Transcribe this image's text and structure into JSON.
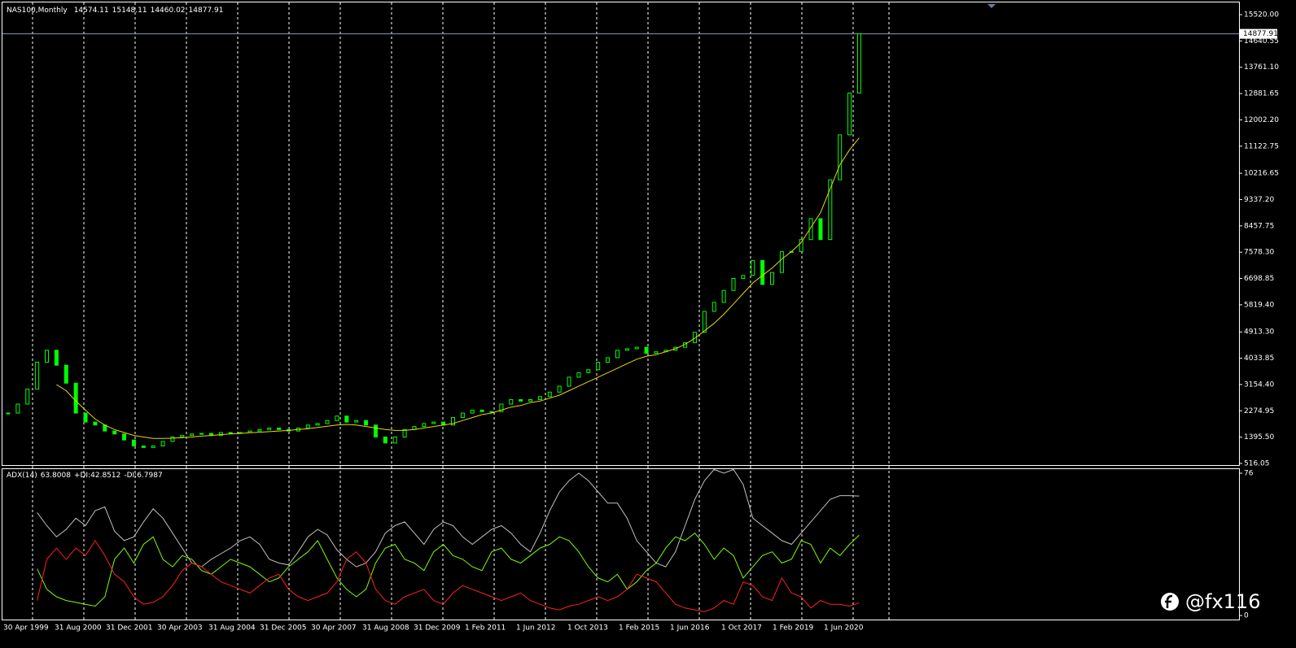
{
  "chart_data": {
    "type": "candlestick",
    "title": "NAS100,Monthly",
    "ohlc": [
      14574.11,
      15148.11,
      14460.02,
      14877.91
    ],
    "color": "#00ff00",
    "closes": [
      2200,
      2500,
      3000,
      3900,
      4300,
      3800,
      3200,
      2200,
      1900,
      1800,
      1600,
      1500,
      1300,
      1100,
      1050,
      1100,
      1250,
      1400,
      1450,
      1500,
      1520,
      1450,
      1550,
      1550,
      1550,
      1600,
      1650,
      1700,
      1650,
      1600,
      1700,
      1800,
      1850,
      1950,
      2100,
      1900,
      1950,
      1800,
      1400,
      1200,
      1400,
      1650,
      1750,
      1850,
      1900,
      1800,
      2050,
      2200,
      2300,
      2250,
      2250,
      2500,
      2650,
      2600,
      2650,
      2750,
      2900,
      3100,
      3400,
      3550,
      3650,
      3900,
      4050,
      4300,
      4350,
      4400,
      4200,
      4250,
      4300,
      4400,
      4550,
      4900,
      5600,
      5900,
      6300,
      6700,
      6800,
      7300,
      6500,
      6900,
      7600,
      7600,
      8000,
      8700,
      8000,
      10000,
      11500,
      12900,
      14877.91
    ],
    "ma": {
      "color": "#e8d800",
      "values": [
        null,
        null,
        null,
        null,
        null,
        3150,
        2950,
        2600,
        2300,
        2000,
        1800,
        1650,
        1550,
        1450,
        1400,
        1350,
        1350,
        1360,
        1380,
        1400,
        1430,
        1450,
        1480,
        1500,
        1520,
        1540,
        1560,
        1580,
        1600,
        1620,
        1650,
        1680,
        1720,
        1760,
        1800,
        1820,
        1800,
        1750,
        1700,
        1650,
        1620,
        1620,
        1650,
        1700,
        1750,
        1800,
        1850,
        1950,
        2050,
        2150,
        2200,
        2300,
        2400,
        2450,
        2550,
        2600,
        2700,
        2800,
        2950,
        3100,
        3250,
        3400,
        3550,
        3700,
        3850,
        4000,
        4100,
        4150,
        4250,
        4350,
        4500,
        4700,
        4950,
        5200,
        5500,
        5850,
        6200,
        6550,
        6800,
        7050,
        7350,
        7600,
        7900,
        8400,
        8900,
        9700,
        10500,
        11000,
        11400
      ]
    },
    "current_price": 14877.91,
    "ylim": [
      516.05,
      15520
    ],
    "yticks": [
      {
        "value": 15520,
        "label": "15520.00"
      },
      14640.55,
      {
        "value": 13761.1,
        "label": "13761.10"
      },
      12881.65,
      {
        "value": 12002.2,
        "label": "12002.20"
      },
      11122.75,
      10216.65,
      {
        "value": 9337.2,
        "label": "9337.20"
      },
      8457.75,
      {
        "value": 7578.3,
        "label": "7578.30"
      },
      6698.85,
      {
        "value": 5819.4,
        "label": "5819.40"
      },
      {
        "value": 4913.3,
        "label": "4913.30"
      },
      4033.85,
      {
        "value": 3154.4,
        "label": "3154.40"
      },
      2274.95,
      {
        "value": 1395.5,
        "label": "1395.50"
      },
      516.05
    ],
    "xlabels": [
      "30 Apr 1999",
      "31 Aug 2000",
      "31 Dec 2001",
      "30 Apr 2003",
      "31 Aug 2004",
      "31 Dec 2005",
      "30 Apr 2007",
      "31 Aug 2008",
      "31 Dec 2009",
      "1 Feb 2011",
      "1 Jun 2012",
      "1 Oct 2013",
      "1 Feb 2015",
      "1 Jun 2016",
      "1 Oct 2017",
      "1 Feb 2019",
      "1 Jun 2020"
    ],
    "indicator": {
      "label": "ADX(14)",
      "adx": 63.8008,
      "plus_di_label": "+DI:",
      "plus_di": 42.8512,
      "minus_di_label": "-DI:",
      "minus_di": 6.7987,
      "ylim": [
        0,
        76
      ],
      "yticks": [
        76,
        0
      ],
      "series": [
        {
          "color": "#c0c0c0",
          "values": [
            null,
            null,
            null,
            55,
            48,
            42,
            46,
            52,
            48,
            56,
            58,
            45,
            40,
            42,
            50,
            57,
            52,
            44,
            36,
            28,
            26,
            30,
            33,
            36,
            40,
            42,
            38,
            30,
            28,
            27,
            34,
            42,
            46,
            43,
            35,
            30,
            26,
            28,
            34,
            44,
            48,
            50,
            44,
            38,
            46,
            50,
            48,
            42,
            38,
            42,
            46,
            48,
            44,
            38,
            34,
            44,
            56,
            66,
            72,
            76,
            72,
            66,
            60,
            60,
            52,
            40,
            34,
            28,
            26,
            34,
            48,
            62,
            72,
            78,
            76,
            78,
            70,
            52,
            48,
            44,
            40,
            38,
            44,
            50,
            56,
            62,
            64,
            64,
            63.8
          ]
        },
        {
          "color": "#7cfc00",
          "values": [
            null,
            null,
            null,
            25,
            14,
            10,
            8,
            7,
            6,
            5,
            10,
            30,
            36,
            28,
            38,
            42,
            30,
            26,
            32,
            30,
            24,
            22,
            26,
            30,
            28,
            26,
            22,
            18,
            20,
            26,
            30,
            34,
            40,
            30,
            20,
            14,
            10,
            14,
            28,
            36,
            38,
            30,
            28,
            24,
            34,
            38,
            32,
            30,
            26,
            24,
            34,
            36,
            30,
            28,
            32,
            36,
            38,
            42,
            40,
            34,
            26,
            20,
            18,
            22,
            14,
            18,
            24,
            28,
            36,
            42,
            40,
            44,
            38,
            30,
            36,
            32,
            20,
            26,
            32,
            34,
            28,
            30,
            40,
            38,
            28,
            36,
            32,
            38,
            42.85
          ]
        },
        {
          "color": "#ff2020",
          "values": [
            null,
            null,
            null,
            8,
            30,
            36,
            30,
            36,
            32,
            40,
            32,
            22,
            18,
            10,
            6,
            7,
            10,
            16,
            24,
            28,
            26,
            22,
            18,
            16,
            14,
            12,
            16,
            20,
            22,
            14,
            10,
            8,
            10,
            12,
            18,
            30,
            34,
            28,
            14,
            8,
            6,
            10,
            12,
            14,
            8,
            6,
            12,
            16,
            14,
            12,
            10,
            8,
            10,
            12,
            8,
            6,
            4,
            3,
            5,
            6,
            8,
            10,
            8,
            10,
            14,
            22,
            20,
            18,
            12,
            6,
            4,
            3,
            2,
            4,
            8,
            6,
            18,
            16,
            10,
            8,
            20,
            12,
            10,
            4,
            8,
            6,
            6,
            5,
            6.8
          ]
        }
      ]
    },
    "watermark": "@fx116"
  }
}
